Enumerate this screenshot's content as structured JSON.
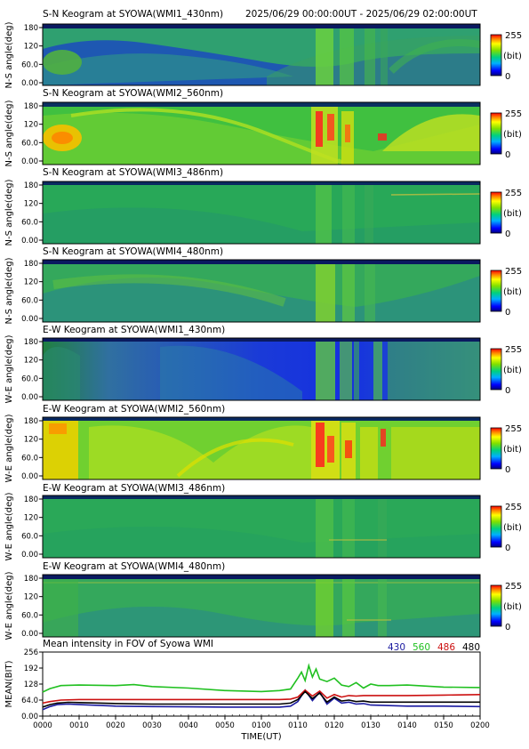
{
  "header": {
    "time_range": "2025/06/29 00:00:00UT - 2025/06/29 02:00:00UT"
  },
  "colorbar": {
    "max_label": "255",
    "unit_label": "(bit)",
    "min_label": "0"
  },
  "keograms": [
    {
      "title": "S-N Keogram at SYOWA(WMI1_430nm)",
      "ylabel": "N-S angle(deg)",
      "yticks": [
        "180",
        "120",
        "60.0",
        "0.00"
      ]
    },
    {
      "title": "S-N Keogram at SYOWA(WMI2_560nm)",
      "ylabel": "N-S angle(deg)",
      "yticks": [
        "180",
        "120",
        "60.0",
        "0.00"
      ]
    },
    {
      "title": "S-N Keogram at SYOWA(WMI3_486nm)",
      "ylabel": "N-S angle(deg)",
      "yticks": [
        "180",
        "120",
        "60.0",
        "0.00"
      ]
    },
    {
      "title": "S-N Keogram at SYOWA(WMI4_480nm)",
      "ylabel": "N-S angle(deg)",
      "yticks": [
        "180",
        "120",
        "60.0",
        "0.00"
      ]
    },
    {
      "title": "E-W Keogram at SYOWA(WMI1_430nm)",
      "ylabel": "W-E angle(deg)",
      "yticks": [
        "180",
        "120",
        "60.0",
        "0.00"
      ]
    },
    {
      "title": "E-W Keogram at SYOWA(WMI2_560nm)",
      "ylabel": "W-E angle(deg)",
      "yticks": [
        "180",
        "120",
        "60.0",
        "0.00"
      ]
    },
    {
      "title": "E-W Keogram at SYOWA(WMI3_486nm)",
      "ylabel": "W-E angle(deg)",
      "yticks": [
        "180",
        "120",
        "60.0",
        "0.00"
      ]
    },
    {
      "title": "E-W Keogram at SYOWA(WMI4_480nm)",
      "ylabel": "W-E angle(deg)",
      "yticks": [
        "180",
        "120",
        "60.0",
        "0.00"
      ]
    }
  ],
  "chart_data": {
    "type": "line",
    "title": "Mean intensity in FOV of Syowa WMI",
    "xlabel": "TIME(UT)",
    "ylabel": "MEAN(BIT)",
    "xticks": [
      "0000",
      "0010",
      "0020",
      "0030",
      "0040",
      "0050",
      "0100",
      "0110",
      "0120",
      "0130",
      "0140",
      "0150",
      "0200"
    ],
    "yticks": [
      "256",
      "192",
      "128",
      "64.0",
      "0.00"
    ],
    "xlim": [
      0,
      120
    ],
    "ylim": [
      0,
      256
    ],
    "series": [
      {
        "name": "430",
        "color": "#1a1aa0",
        "x": [
          0,
          2,
          4,
          7,
          10,
          20,
          30,
          40,
          50,
          60,
          65,
          68,
          70,
          72,
          74,
          76,
          78,
          80,
          82,
          84,
          86,
          88,
          90,
          95,
          100,
          110,
          120
        ],
        "y": [
          26,
          38,
          46,
          48,
          46,
          40,
          38,
          37,
          36,
          36,
          36,
          40,
          58,
          104,
          62,
          96,
          48,
          72,
          52,
          56,
          48,
          50,
          44,
          42,
          40,
          40,
          38
        ]
      },
      {
        "name": "560",
        "color": "#20c020",
        "x": [
          0,
          2,
          5,
          10,
          20,
          25,
          30,
          40,
          50,
          60,
          65,
          68,
          70,
          71,
          72,
          73,
          74,
          75,
          76,
          78,
          80,
          82,
          84,
          86,
          88,
          90,
          92,
          95,
          100,
          110,
          120
        ],
        "y": [
          96,
          110,
          122,
          124,
          122,
          126,
          118,
          112,
          102,
          98,
          102,
          108,
          152,
          176,
          142,
          202,
          156,
          188,
          148,
          138,
          152,
          124,
          118,
          134,
          112,
          128,
          122,
          122,
          124,
          116,
          114
        ]
      },
      {
        "name": "486",
        "color": "#cc1010",
        "x": [
          0,
          2,
          5,
          10,
          20,
          30,
          40,
          50,
          60,
          65,
          68,
          70,
          72,
          74,
          76,
          78,
          80,
          82,
          84,
          86,
          88,
          90,
          95,
          100,
          110,
          120
        ],
        "y": [
          52,
          58,
          64,
          66,
          66,
          66,
          66,
          66,
          66,
          66,
          68,
          76,
          104,
          80,
          100,
          72,
          86,
          76,
          82,
          80,
          82,
          82,
          82,
          82,
          84,
          86
        ]
      },
      {
        "name": "480",
        "color": "#000000",
        "x": [
          0,
          2,
          4,
          7,
          10,
          20,
          30,
          40,
          50,
          60,
          65,
          68,
          70,
          72,
          74,
          76,
          78,
          80,
          82,
          84,
          86,
          88,
          90,
          95,
          100,
          110,
          120
        ],
        "y": [
          36,
          46,
          52,
          55,
          54,
          50,
          48,
          48,
          48,
          48,
          48,
          52,
          66,
          98,
          70,
          92,
          56,
          76,
          60,
          64,
          58,
          60,
          56,
          56,
          56,
          56,
          56
        ]
      }
    ]
  }
}
